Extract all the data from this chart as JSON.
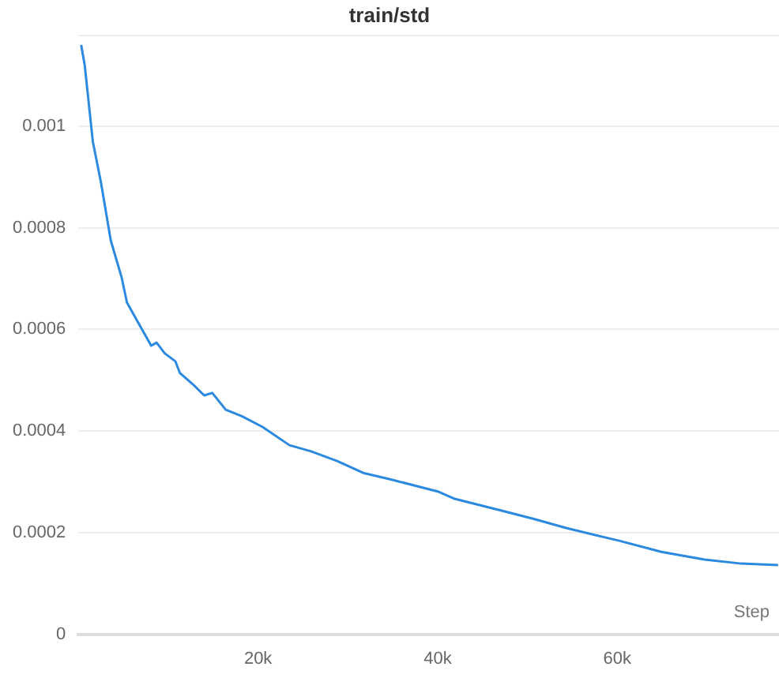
{
  "chart_data": {
    "type": "line",
    "title": "train/std",
    "xlabel": "Step",
    "x": [
      300,
      700,
      1600,
      2500,
      3600,
      4800,
      5400,
      6600,
      8100,
      8700,
      9600,
      10800,
      11300,
      12800,
      14000,
      14900,
      16400,
      18200,
      20500,
      23500,
      25900,
      28800,
      31800,
      34700,
      40000,
      41800,
      47200,
      50700,
      54300,
      60200,
      64900,
      69700,
      73800,
      77900
    ],
    "series": [
      {
        "color": "#2b8ae0",
        "values": [
          0.00116,
          0.00112,
          0.00097,
          0.00089,
          0.000775,
          0.000703,
          0.000653,
          0.000615,
          0.000568,
          0.000574,
          0.000553,
          0.000537,
          0.000514,
          0.000491,
          0.00047,
          0.000475,
          0.000442,
          0.000429,
          0.000408,
          0.000372,
          0.00036,
          0.000341,
          0.000317,
          0.000305,
          0.000281,
          0.000267,
          0.000243,
          0.000227,
          0.000209,
          0.000184,
          0.000162,
          0.000147,
          0.000139,
          0.000136
        ]
      }
    ],
    "xlim": [
      0,
      78000
    ],
    "xticks": [
      {
        "value": 20000,
        "label": "20k"
      },
      {
        "value": 40000,
        "label": "40k"
      },
      {
        "value": 60000,
        "label": "60k"
      }
    ],
    "ylim": [
      0,
      0.00118
    ],
    "yticks": [
      0,
      0.0002,
      0.0004,
      0.0006,
      0.0008,
      0.001
    ],
    "grid": "y",
    "legend": false,
    "marker": "none",
    "line_style": "solid"
  }
}
